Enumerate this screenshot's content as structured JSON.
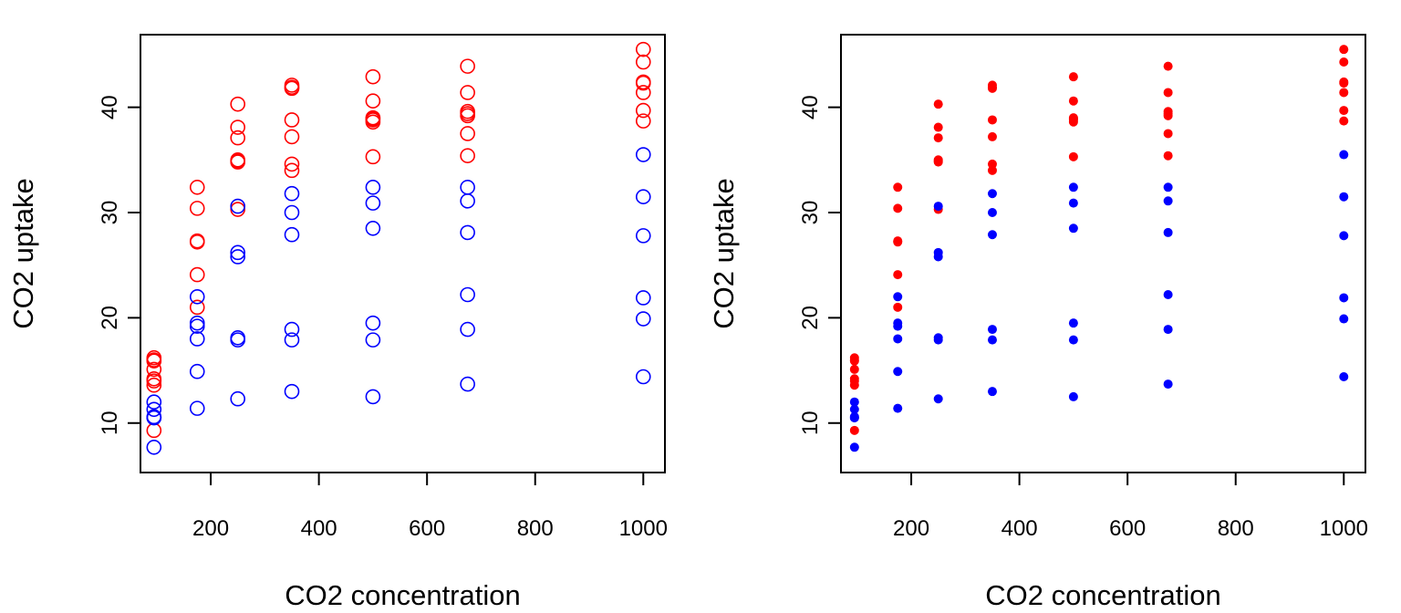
{
  "chart_data": [
    {
      "type": "scatter",
      "marker": "open-circle",
      "title": "",
      "xlabel": "CO2 concentration",
      "ylabel": "CO2 uptake",
      "xlim": [
        70,
        1040
      ],
      "ylim": [
        5.3,
        46.9
      ],
      "xticks": [
        200,
        400,
        600,
        800,
        1000
      ],
      "xtick_labels": [
        "200",
        "400",
        "600",
        "800",
        "1000"
      ],
      "yticks": [
        10,
        20,
        30,
        40
      ],
      "ytick_labels": [
        "10",
        "20",
        "30",
        "40"
      ],
      "grid": false,
      "legend": "none",
      "series": [
        {
          "color": "#ff0000",
          "x": [
            95,
            95,
            95,
            95,
            95,
            95,
            95,
            95,
            175,
            175,
            175,
            175,
            175,
            175,
            250,
            250,
            250,
            250,
            250,
            250,
            250,
            350,
            350,
            350,
            350,
            350,
            350,
            350,
            500,
            500,
            500,
            500,
            500,
            500,
            500,
            675,
            675,
            675,
            675,
            675,
            675,
            675,
            1000,
            1000,
            1000,
            1000,
            1000,
            1000,
            1000
          ],
          "y": [
            16.2,
            15.9,
            15.1,
            14.2,
            13.6,
            9.3,
            16.0,
            14.0,
            32.4,
            30.4,
            27.3,
            27.2,
            24.1,
            21.0,
            40.3,
            38.1,
            37.1,
            35.0,
            34.8,
            30.3,
            34.9,
            42.1,
            41.8,
            38.8,
            37.2,
            34.6,
            34.0,
            41.9,
            42.9,
            40.6,
            39.0,
            38.6,
            35.3,
            38.8,
            38.9,
            43.9,
            41.4,
            39.6,
            39.2,
            37.5,
            35.4,
            39.4,
            45.5,
            44.3,
            42.4,
            41.4,
            39.7,
            38.7,
            42.3
          ]
        },
        {
          "color": "#0000ff",
          "x": [
            95,
            95,
            95,
            95,
            95,
            95,
            175,
            175,
            175,
            175,
            175,
            175,
            250,
            250,
            250,
            250,
            250,
            250,
            350,
            350,
            350,
            350,
            350,
            350,
            500,
            500,
            500,
            500,
            500,
            500,
            675,
            675,
            675,
            675,
            675,
            675,
            1000,
            1000,
            1000,
            1000,
            1000,
            1000
          ],
          "y": [
            12.0,
            11.3,
            10.6,
            10.5,
            7.7,
            10.5,
            22.0,
            19.5,
            19.2,
            18.0,
            14.9,
            11.4,
            30.6,
            26.2,
            25.8,
            18.1,
            17.9,
            12.3,
            31.8,
            30.0,
            27.9,
            18.9,
            17.9,
            13.0,
            32.4,
            30.9,
            28.5,
            19.5,
            17.9,
            12.5,
            32.4,
            31.1,
            28.1,
            22.2,
            18.9,
            13.7,
            35.5,
            31.5,
            27.8,
            21.9,
            19.9,
            14.4
          ]
        }
      ]
    },
    {
      "type": "scatter",
      "marker": "filled-circle",
      "title": "",
      "xlabel": "CO2 concentration",
      "ylabel": "CO2 uptake",
      "xlim": [
        70,
        1040
      ],
      "ylim": [
        5.3,
        46.9
      ],
      "xticks": [
        200,
        400,
        600,
        800,
        1000
      ],
      "xtick_labels": [
        "200",
        "400",
        "600",
        "800",
        "1000"
      ],
      "yticks": [
        10,
        20,
        30,
        40
      ],
      "ytick_labels": [
        "10",
        "20",
        "30",
        "40"
      ],
      "grid": false,
      "legend": "none",
      "series": [
        {
          "color": "#ff0000",
          "x": [
            95,
            95,
            95,
            95,
            95,
            95,
            95,
            95,
            175,
            175,
            175,
            175,
            175,
            175,
            250,
            250,
            250,
            250,
            250,
            250,
            250,
            350,
            350,
            350,
            350,
            350,
            350,
            350,
            500,
            500,
            500,
            500,
            500,
            500,
            500,
            675,
            675,
            675,
            675,
            675,
            675,
            675,
            1000,
            1000,
            1000,
            1000,
            1000,
            1000,
            1000
          ],
          "y": [
            16.2,
            15.9,
            15.1,
            14.2,
            13.6,
            9.3,
            16.0,
            14.0,
            32.4,
            30.4,
            27.3,
            27.2,
            24.1,
            21.0,
            40.3,
            38.1,
            37.1,
            35.0,
            34.8,
            30.3,
            34.9,
            42.1,
            41.8,
            38.8,
            37.2,
            34.6,
            34.0,
            41.9,
            42.9,
            40.6,
            39.0,
            38.6,
            35.3,
            38.8,
            38.9,
            43.9,
            41.4,
            39.6,
            39.2,
            37.5,
            35.4,
            39.4,
            45.5,
            44.3,
            42.4,
            41.4,
            39.7,
            38.7,
            42.3
          ]
        },
        {
          "color": "#0000ff",
          "x": [
            95,
            95,
            95,
            95,
            95,
            95,
            175,
            175,
            175,
            175,
            175,
            175,
            250,
            250,
            250,
            250,
            250,
            250,
            350,
            350,
            350,
            350,
            350,
            350,
            500,
            500,
            500,
            500,
            500,
            500,
            675,
            675,
            675,
            675,
            675,
            675,
            1000,
            1000,
            1000,
            1000,
            1000,
            1000
          ],
          "y": [
            12.0,
            11.3,
            10.6,
            10.5,
            7.7,
            10.5,
            22.0,
            19.5,
            19.2,
            18.0,
            14.9,
            11.4,
            30.6,
            26.2,
            25.8,
            18.1,
            17.9,
            12.3,
            31.8,
            30.0,
            27.9,
            18.9,
            17.9,
            13.0,
            32.4,
            30.9,
            28.5,
            19.5,
            17.9,
            12.5,
            32.4,
            31.1,
            28.1,
            22.2,
            18.9,
            13.7,
            35.5,
            31.5,
            27.8,
            21.9,
            19.9,
            14.4
          ]
        }
      ]
    }
  ]
}
